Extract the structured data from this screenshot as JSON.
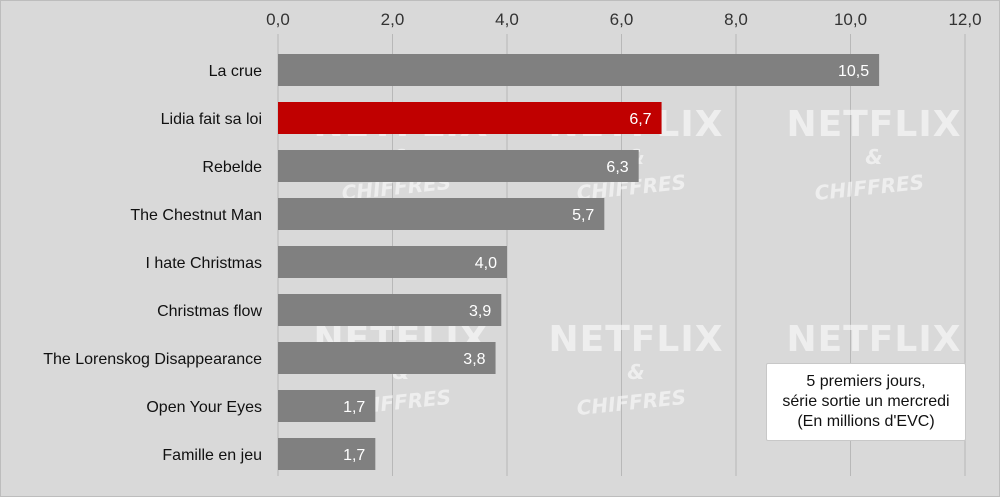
{
  "chart_data": {
    "type": "bar",
    "orientation": "horizontal",
    "categories": [
      "La crue",
      "Lidia fait sa loi",
      "Rebelde",
      "The Chestnut Man",
      "I hate Christmas",
      "Christmas flow",
      "The Lorenskog Disappearance",
      "Open Your Eyes",
      "Famille en jeu"
    ],
    "values": [
      10.5,
      6.7,
      6.3,
      5.7,
      4.0,
      3.9,
      3.8,
      1.7,
      1.7
    ],
    "value_labels": [
      "10,5",
      "6,7",
      "6,3",
      "5,7",
      "4,0",
      "3,9",
      "3,8",
      "1,7",
      "1,7"
    ],
    "xlim": [
      0,
      12
    ],
    "x_ticks": [
      0,
      2,
      4,
      6,
      8,
      10,
      12
    ],
    "x_tick_labels": [
      "0,0",
      "2,0",
      "4,0",
      "6,0",
      "8,0",
      "10,0",
      "12,0"
    ],
    "x_axis_position": "top",
    "grid": "vertical",
    "highlight_index": 1,
    "colors": {
      "bar": "#808080",
      "highlight": "#c00000",
      "background": "#d9d9d9",
      "grid": "#b8b8b8"
    }
  },
  "note": {
    "lines": [
      "5 premiers jours,",
      "série sortie un mercredi",
      "(En millions d'EVC)"
    ]
  },
  "watermark": {
    "line1": "NETFLIX",
    "line2": "&",
    "line3": "CHIFFRES"
  }
}
